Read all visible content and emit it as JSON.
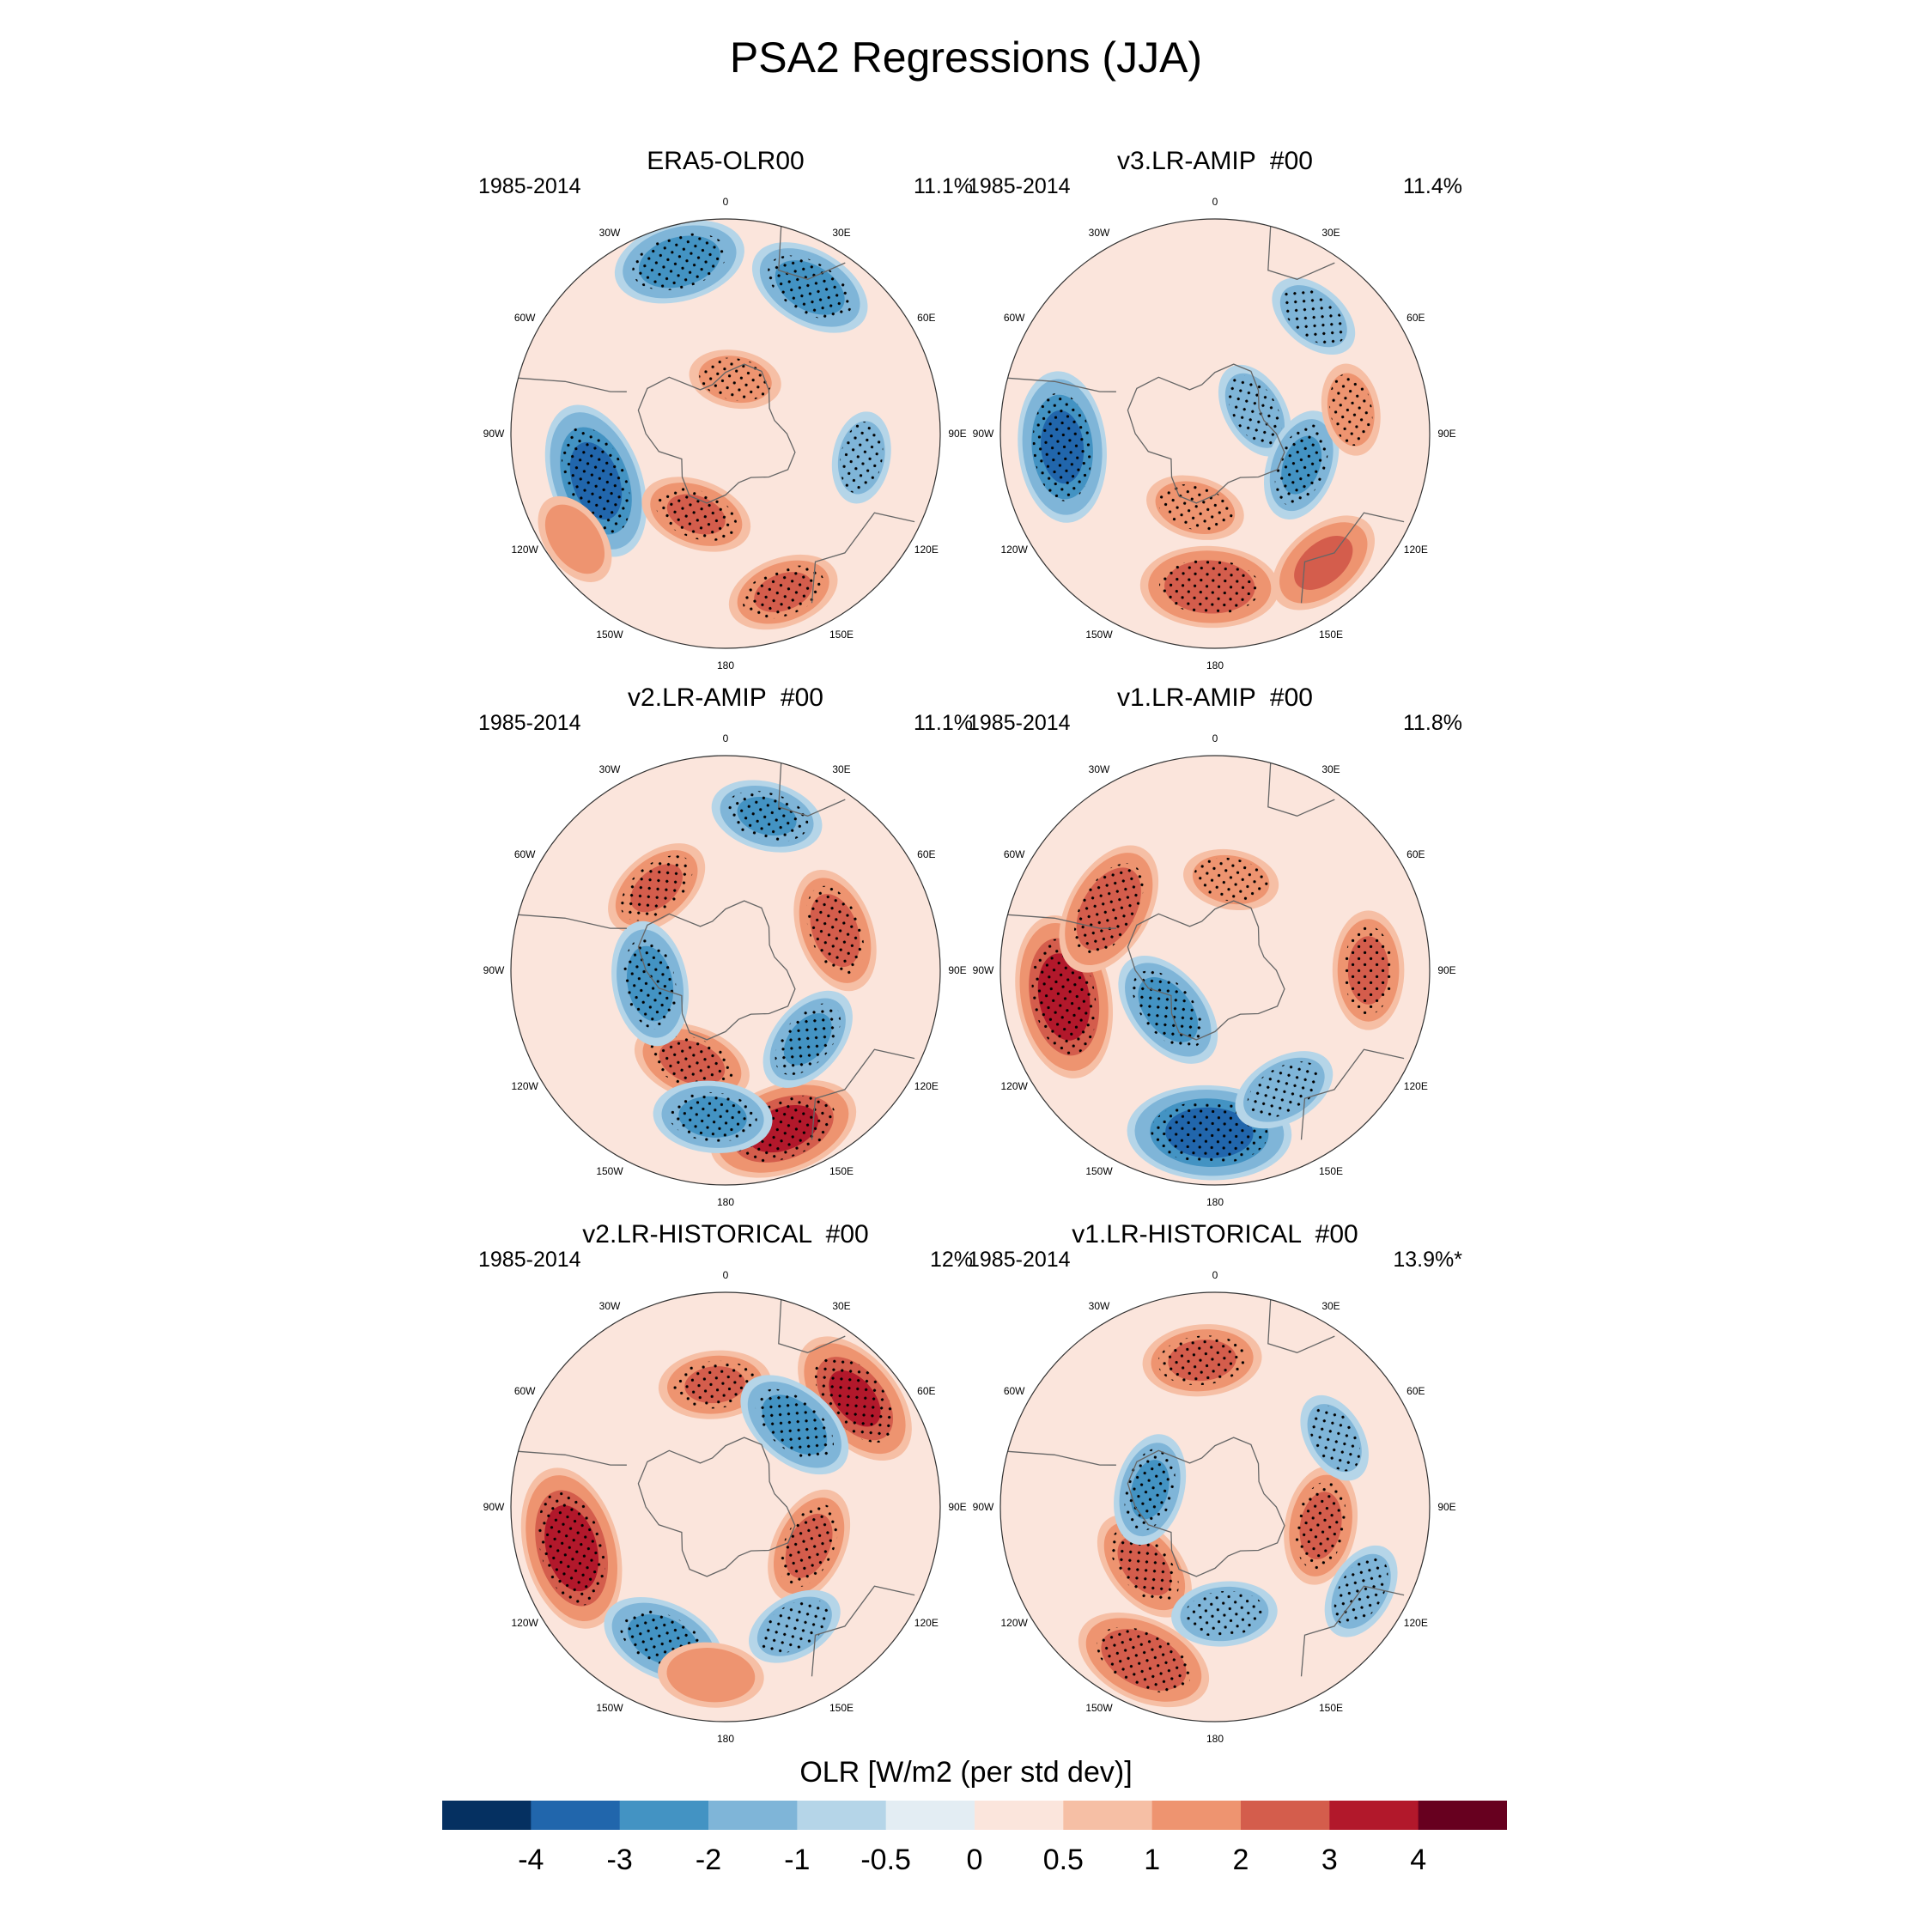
{
  "figure": {
    "title": "PSA2 Regressions (JJA)",
    "colorbar_label": "OLR [W/m2 (per std dev)]",
    "colorbar_ticks": [
      "-4",
      "-3",
      "-2",
      "-1",
      "-0.5",
      "0",
      "0.5",
      "1",
      "2",
      "3",
      "4"
    ],
    "colorbar_colors": [
      "#053061",
      "#2166ac",
      "#4393c3",
      "#7fb5d8",
      "#b5d5e8",
      "#e3edf3",
      "#fbe5dc",
      "#f6bfa5",
      "#ee9470",
      "#d45d4c",
      "#b2182b",
      "#67001f"
    ],
    "longitude_labels": [
      "0",
      "30E",
      "60E",
      "90E",
      "120E",
      "150E",
      "180",
      "150W",
      "120W",
      "90W",
      "60W",
      "30W"
    ]
  },
  "chart_data": [
    {
      "type": "map",
      "projection": "south-polar-stereographic",
      "title": "ERA5-OLR00",
      "period": "1985-2014",
      "variance_explained": "11.1%",
      "anomalies": [
        {
          "lon": -15,
          "lat": -32,
          "value": -2.6,
          "stippled": true
        },
        {
          "lon": 30,
          "lat": -35,
          "value": -2.4,
          "stippled": true
        },
        {
          "lon": -110,
          "lat": -45,
          "value": -3.4,
          "stippled": true
        },
        {
          "lon": -160,
          "lat": -62,
          "value": 2.0,
          "stippled": true
        },
        {
          "lon": 160,
          "lat": -35,
          "value": 2.0,
          "stippled": true
        },
        {
          "lon": -125,
          "lat": -30,
          "value": 1.5,
          "stippled": false
        },
        {
          "lon": 100,
          "lat": -45,
          "value": -1.4,
          "stippled": true
        },
        {
          "lon": 10,
          "lat": -72,
          "value": 1.4,
          "stippled": true
        }
      ]
    },
    {
      "type": "map",
      "projection": "south-polar-stereographic",
      "title": "v3.LR-AMIP  #00",
      "period": "1985-2014",
      "variance_explained": "11.4%",
      "anomalies": [
        {
          "lon": -95,
          "lat": -40,
          "value": -3.2,
          "stippled": true
        },
        {
          "lon": 60,
          "lat": -75,
          "value": -1.6,
          "stippled": true
        },
        {
          "lon": 110,
          "lat": -60,
          "value": -2.0,
          "stippled": true
        },
        {
          "lon": -178,
          "lat": -40,
          "value": 2.8,
          "stippled": true
        },
        {
          "lon": 140,
          "lat": -35,
          "value": 2.2,
          "stippled": false
        },
        {
          "lon": 40,
          "lat": -40,
          "value": -1.5,
          "stippled": true
        },
        {
          "lon": -165,
          "lat": -65,
          "value": 1.6,
          "stippled": true
        },
        {
          "lon": 80,
          "lat": -45,
          "value": 1.4,
          "stippled": true
        }
      ]
    },
    {
      "type": "map",
      "projection": "south-polar-stereographic",
      "title": "v2.LR-AMIP  #00",
      "period": "1985-2014",
      "variance_explained": "11.1%",
      "anomalies": [
        {
          "lon": -40,
          "lat": -55,
          "value": 2.0,
          "stippled": true
        },
        {
          "lon": 70,
          "lat": -52,
          "value": 2.4,
          "stippled": true
        },
        {
          "lon": -160,
          "lat": -58,
          "value": 2.2,
          "stippled": true
        },
        {
          "lon": 160,
          "lat": -35,
          "value": 3.2,
          "stippled": true
        },
        {
          "lon": -100,
          "lat": -65,
          "value": -2.4,
          "stippled": true
        },
        {
          "lon": 130,
          "lat": -55,
          "value": -2.0,
          "stippled": true
        },
        {
          "lon": 15,
          "lat": -38,
          "value": -2.0,
          "stippled": true
        },
        {
          "lon": -175,
          "lat": -42,
          "value": -2.2,
          "stippled": true
        }
      ]
    },
    {
      "type": "map",
      "projection": "south-polar-stereographic",
      "title": "v1.LR-AMIP  #00",
      "period": "1985-2014",
      "variance_explained": "11.8%",
      "anomalies": [
        {
          "lon": -100,
          "lat": -40,
          "value": 3.6,
          "stippled": true
        },
        {
          "lon": -60,
          "lat": -50,
          "value": 2.8,
          "stippled": true
        },
        {
          "lon": 10,
          "lat": -60,
          "value": 1.5,
          "stippled": true
        },
        {
          "lon": 90,
          "lat": -40,
          "value": 2.2,
          "stippled": true
        },
        {
          "lon": -130,
          "lat": -70,
          "value": -2.4,
          "stippled": true
        },
        {
          "lon": -178,
          "lat": -37,
          "value": -3.6,
          "stippled": true
        },
        {
          "lon": 150,
          "lat": -45,
          "value": -1.8,
          "stippled": true
        }
      ]
    },
    {
      "type": "map",
      "projection": "south-polar-stereographic",
      "title": "v2.LR-HISTORICAL  #00",
      "period": "1985-2014",
      "variance_explained": "12%",
      "anomalies": [
        {
          "lon": -105,
          "lat": -38,
          "value": 3.6,
          "stippled": true
        },
        {
          "lon": 50,
          "lat": -35,
          "value": 3.0,
          "stippled": true
        },
        {
          "lon": -5,
          "lat": -50,
          "value": 2.0,
          "stippled": true
        },
        {
          "lon": 115,
          "lat": -60,
          "value": 2.2,
          "stippled": true
        },
        {
          "lon": 40,
          "lat": -55,
          "value": -2.4,
          "stippled": true
        },
        {
          "lon": -155,
          "lat": -42,
          "value": -2.4,
          "stippled": true
        },
        {
          "lon": -175,
          "lat": -35,
          "value": 1.8,
          "stippled": false
        },
        {
          "lon": 150,
          "lat": -45,
          "value": -1.6,
          "stippled": true
        }
      ]
    },
    {
      "type": "map",
      "projection": "south-polar-stereographic",
      "title": "v1.LR-HISTORICAL  #00",
      "period": "1985-2014",
      "variance_explained": "13.9%*",
      "anomalies": [
        {
          "lon": -5,
          "lat": -42,
          "value": 2.2,
          "stippled": true
        },
        {
          "lon": 100,
          "lat": -55,
          "value": 2.2,
          "stippled": true
        },
        {
          "lon": -130,
          "lat": -60,
          "value": 2.2,
          "stippled": true
        },
        {
          "lon": -155,
          "lat": -35,
          "value": 2.8,
          "stippled": true
        },
        {
          "lon": -75,
          "lat": -68,
          "value": -2.0,
          "stippled": true
        },
        {
          "lon": 175,
          "lat": -55,
          "value": -1.8,
          "stippled": true
        },
        {
          "lon": 60,
          "lat": -45,
          "value": -1.4,
          "stippled": true
        },
        {
          "lon": 120,
          "lat": -35,
          "value": -1.6,
          "stippled": true
        }
      ]
    }
  ]
}
